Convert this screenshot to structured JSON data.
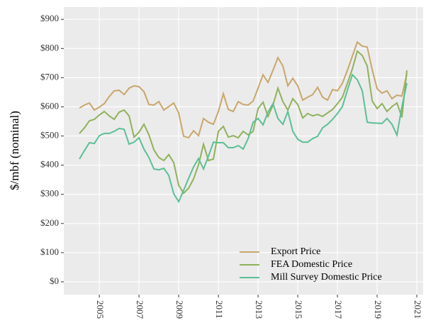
{
  "chart_data": {
    "type": "line",
    "y_label": "$/mbf (nominal)",
    "x": [
      2004,
      2004.25,
      2004.5,
      2004.75,
      2005,
      2005.25,
      2005.5,
      2005.75,
      2006,
      2006.25,
      2006.5,
      2006.75,
      2007,
      2007.25,
      2007.5,
      2007.75,
      2008,
      2008.25,
      2008.5,
      2008.75,
      2009,
      2009.25,
      2009.5,
      2009.75,
      2010,
      2010.25,
      2010.5,
      2010.75,
      2011,
      2011.25,
      2011.5,
      2011.75,
      2012,
      2012.25,
      2012.5,
      2012.75,
      2013,
      2013.25,
      2013.5,
      2013.75,
      2014,
      2014.25,
      2014.5,
      2014.75,
      2015,
      2015.25,
      2015.5,
      2015.75,
      2016,
      2016.25,
      2016.5,
      2016.75,
      2017,
      2017.25,
      2017.5,
      2017.75,
      2018,
      2018.25,
      2018.5,
      2018.75,
      2019,
      2019.25,
      2019.5,
      2019.75,
      2020,
      2020.25,
      2020.5
    ],
    "series": [
      {
        "name": "Export Price",
        "color": "#c9a66b",
        "values": [
          596,
          606,
          613,
          589,
          599,
          611,
          635,
          655,
          657,
          642,
          664,
          672,
          669,
          652,
          608,
          606,
          618,
          589,
          601,
          613,
          579,
          499,
          494,
          518,
          501,
          560,
          547,
          540,
          584,
          645,
          591,
          584,
          618,
          608,
          606,
          620,
          664,
          710,
          684,
          725,
          769,
          740,
          672,
          698,
          672,
          623,
          633,
          642,
          667,
          633,
          623,
          659,
          655,
          681,
          725,
          774,
          822,
          808,
          805,
          727,
          662,
          647,
          655,
          628,
          640,
          637,
          713
        ]
      },
      {
        "name": "FEA Domestic Price",
        "color": "#8fb25a",
        "values": [
          509,
          528,
          552,
          557,
          572,
          584,
          569,
          557,
          582,
          589,
          569,
          496,
          513,
          540,
          504,
          453,
          426,
          416,
          436,
          409,
          331,
          304,
          321,
          353,
          401,
          472,
          416,
          421,
          516,
          533,
          496,
          501,
          494,
          516,
          504,
          516,
          594,
          616,
          567,
          606,
          664,
          618,
          589,
          628,
          608,
          562,
          577,
          569,
          574,
          567,
          579,
          591,
          611,
          633,
          681,
          730,
          791,
          776,
          740,
          620,
          594,
          611,
          584,
          601,
          613,
          564,
          725
        ]
      },
      {
        "name": "Mill Survey Domestic Price",
        "color": "#5bbf95",
        "values": [
          421,
          450,
          477,
          474,
          501,
          509,
          509,
          516,
          526,
          523,
          472,
          479,
          494,
          455,
          426,
          387,
          384,
          389,
          365,
          302,
          275,
          314,
          355,
          394,
          423,
          387,
          431,
          479,
          477,
          477,
          460,
          460,
          467,
          455,
          491,
          547,
          560,
          538,
          582,
          611,
          560,
          540,
          584,
          516,
          489,
          479,
          479,
          491,
          499,
          528,
          540,
          557,
          577,
          601,
          657,
          710,
          693,
          655,
          547,
          545,
          544,
          543,
          560,
          540,
          503,
          600,
          681
        ]
      }
    ],
    "xlim": [
      2003.21,
      2021.32
    ],
    "xticks": [
      2005,
      2007,
      2009,
      2011,
      2013,
      2015,
      2017,
      2019,
      2021
    ],
    "ylim": [
      -44,
      942
    ],
    "yticks": [
      {
        "value": 0,
        "label": "$0"
      },
      {
        "value": 100,
        "label": "$100"
      },
      {
        "value": 200,
        "label": "$200"
      },
      {
        "value": 300,
        "label": "$300"
      },
      {
        "value": 400,
        "label": "$400"
      },
      {
        "value": 500,
        "label": "$500"
      },
      {
        "value": 600,
        "label": "$600"
      },
      {
        "value": 700,
        "label": "$700"
      },
      {
        "value": 800,
        "label": "$800"
      },
      {
        "value": 900,
        "label": "$900"
      }
    ],
    "grid": true,
    "legend": "bottom-right"
  }
}
